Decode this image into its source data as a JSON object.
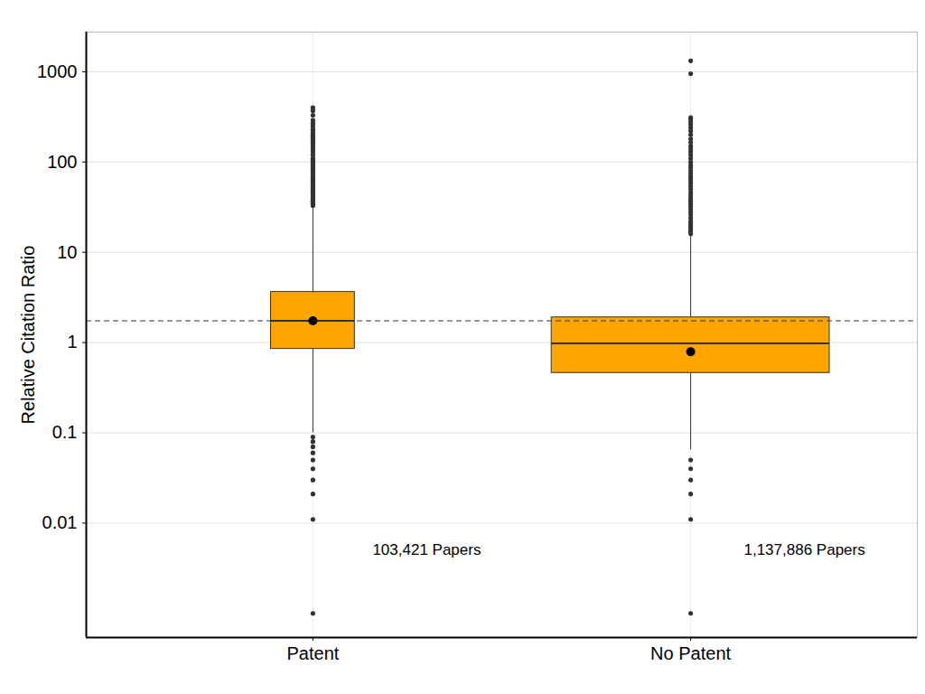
{
  "chart_data": {
    "type": "box",
    "ylabel": "Relative Citation Ratio",
    "log": "y",
    "grid": true,
    "ylim": [
      0.00054,
      2750
    ],
    "yticks": [
      0.01,
      0.1,
      1,
      10,
      100,
      1000
    ],
    "categories": [
      "Patent",
      "No Patent"
    ],
    "color": "#FFA500",
    "boxes": [
      {
        "category": "Patent",
        "n": 103421,
        "whisker_low": 0.1,
        "q1": 0.85,
        "median": 1.74,
        "q3": 3.63,
        "whisker_high": 31,
        "mean": 1.74,
        "outliers": [
          0.001,
          0.011,
          0.021,
          0.03,
          0.04,
          0.05,
          0.06,
          0.07,
          0.08,
          0.09,
          33,
          34,
          35,
          36,
          37,
          38,
          40,
          42,
          44,
          46,
          48,
          50,
          53,
          56,
          60,
          63,
          67,
          70,
          75,
          80,
          85,
          90,
          95,
          100,
          105,
          110,
          120,
          130,
          140,
          150,
          160,
          170,
          180,
          190,
          200,
          215,
          230,
          250,
          270,
          290,
          330,
          370,
          400
        ]
      },
      {
        "category": "No Patent",
        "n": 1137886,
        "whisker_low": 0.065,
        "q1": 0.46,
        "median": 0.98,
        "q3": 1.9,
        "whisker_high": 15.5,
        "mean": 0.79,
        "outliers": [
          0.001,
          0.011,
          0.021,
          0.03,
          0.04,
          0.05,
          16,
          17,
          18,
          19,
          20,
          21,
          22,
          24,
          26,
          28,
          30,
          32,
          34,
          36,
          38,
          40,
          43,
          46,
          50,
          54,
          58,
          62,
          66,
          70,
          75,
          80,
          86,
          92,
          100,
          110,
          120,
          130,
          140,
          150,
          165,
          180,
          200,
          220,
          240,
          260,
          280,
          300,
          310,
          950,
          1320
        ]
      }
    ],
    "hline": {
      "value": 1.74,
      "line_style": "dashed"
    },
    "annotations": [
      {
        "text": "103,421 Papers",
        "category": "Patent",
        "y": 0.005
      },
      {
        "text": "1,137,886 Papers",
        "category": "No Patent",
        "y": 0.005
      }
    ]
  }
}
